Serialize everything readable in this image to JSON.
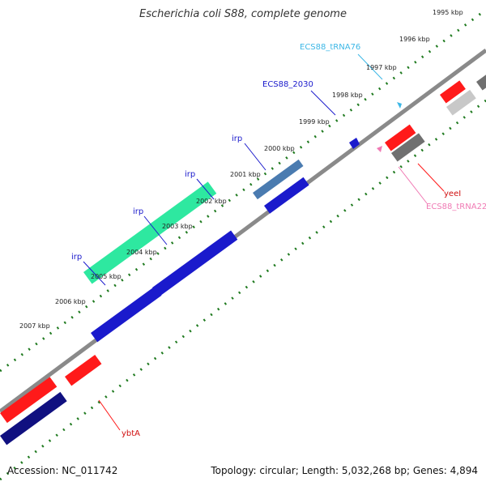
{
  "title": "Escherichia coli S88, complete genome",
  "footer": {
    "accession": "Accession: NC_011742",
    "summary": "Topology: circular; Length: 5,032,268 bp; Genes: 4,894"
  },
  "colors": {
    "backbone": "#8a8a8a",
    "tick": "#1f7a1f",
    "irp": "#1a1acc",
    "red": "#ff1a1a",
    "trna_cyan": "#3cb7e6",
    "trna_pink": "#f07ab4",
    "dark_gray": "#707070",
    "light_gray": "#c8c8c8",
    "navy": "#101080",
    "mint": "#2ee8a0",
    "steel": "#4a7bb0"
  },
  "kbp_labels": [
    "1995 kbp",
    "1996 kbp",
    "1997 kbp",
    "1998 kbp",
    "1999 kbp",
    "2000 kbp",
    "2001 kbp",
    "2002 kbp",
    "2003 kbp",
    "2004 kbp",
    "2005 kbp",
    "2006 kbp",
    "2007 kbp"
  ],
  "gene_labels": {
    "tRNA76": "ECS88_tRNA76",
    "ECS88_2030": "ECS88_2030",
    "irp1": "irp",
    "irp2": "irp",
    "irp3": "irp",
    "irp4": "irp",
    "yeeI": "yeeI",
    "tRNA22": "ECS88_tRNA22",
    "ybtA": "ybtA"
  }
}
